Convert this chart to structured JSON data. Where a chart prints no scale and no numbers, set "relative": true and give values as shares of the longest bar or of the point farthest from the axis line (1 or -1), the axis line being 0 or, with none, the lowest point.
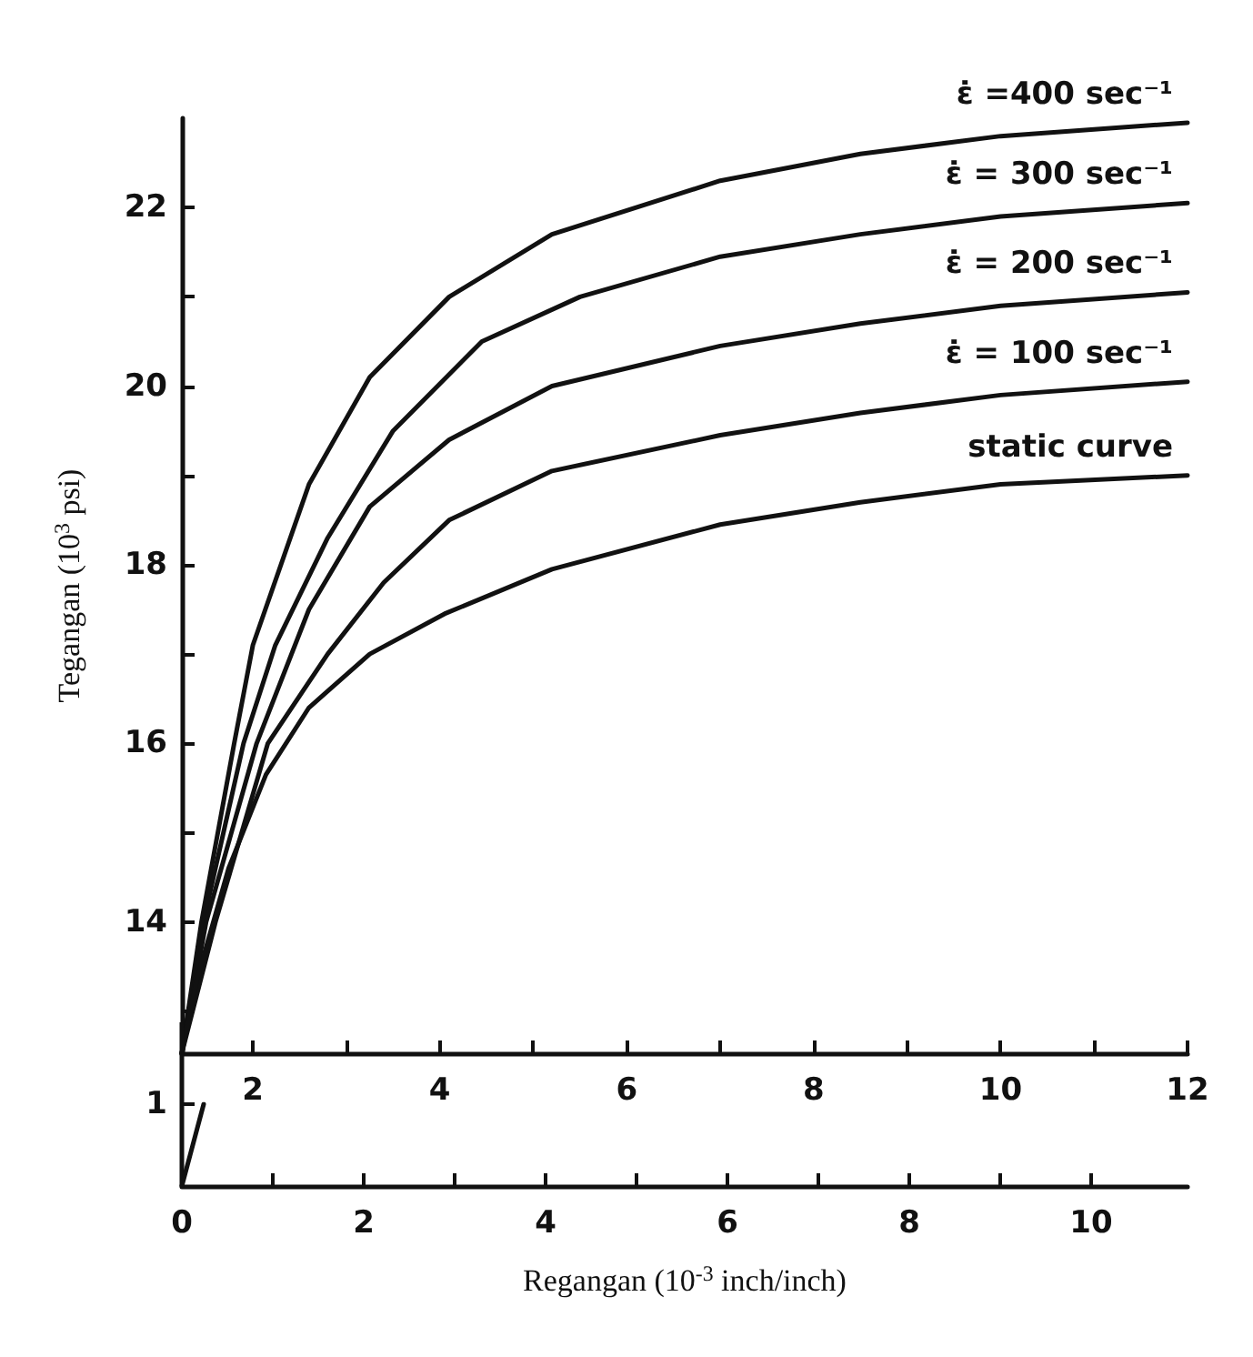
{
  "chart_data": [
    {
      "type": "line",
      "ylabel": "Tegangan (10$^{3}$ psi)",
      "marker": "none",
      "line_style": "solid",
      "xlim": [
        1.24,
        12
      ],
      "xticks": [
        2,
        {
          "value": 3,
          "label": null
        },
        4,
        {
          "value": 5,
          "label": null
        },
        6,
        {
          "value": 7,
          "label": null
        },
        8,
        {
          "value": 9,
          "label": null
        },
        10,
        {
          "value": 11,
          "label": null
        },
        12
      ],
      "ylim": [
        12.53,
        23
      ],
      "yticks": [
        {
          "value": 13,
          "label": null
        },
        14,
        {
          "value": 15,
          "label": null
        },
        16,
        {
          "value": 17,
          "label": null
        },
        18,
        {
          "value": 19,
          "label": null
        },
        20,
        {
          "value": 21,
          "label": null
        },
        22
      ],
      "series": [
        {
          "name": "ε̇ =400 sec⁻¹",
          "color": "#111111",
          "x": [
            1.24,
            1.45,
            1.8,
            2.0,
            2.6,
            3.25,
            4.1,
            5.2,
            7.0,
            8.5,
            10,
            12
          ],
          "values": [
            12.53,
            14,
            16,
            17.1,
            18.9,
            20.1,
            21.0,
            21.7,
            22.3,
            22.6,
            22.8,
            22.95
          ]
        },
        {
          "name": "ε̇ = 300 sec⁻¹",
          "color": "#111111",
          "x": [
            1.24,
            1.47,
            1.9,
            2.24,
            2.8,
            3.5,
            4.45,
            5.5,
            7.0,
            8.5,
            10,
            12
          ],
          "values": [
            12.53,
            14,
            16,
            17.1,
            18.3,
            19.5,
            20.5,
            21.0,
            21.45,
            21.7,
            21.9,
            22.05
          ]
        },
        {
          "name": "ε̇ = 200 sec⁻¹",
          "color": "#111111",
          "x": [
            1.24,
            1.5,
            2.04,
            2.6,
            3.25,
            4.1,
            5.2,
            7.0,
            8.5,
            10,
            12
          ],
          "values": [
            12.53,
            14,
            16,
            17.5,
            18.65,
            19.4,
            20.0,
            20.45,
            20.7,
            20.9,
            21.05
          ]
        },
        {
          "name": "ε̇ = 100 sec⁻¹",
          "color": "#111111",
          "x": [
            1.24,
            1.6,
            2.16,
            2.8,
            3.4,
            4.1,
            5.2,
            7.0,
            8.5,
            10,
            12
          ],
          "values": [
            12.53,
            14,
            16,
            17.0,
            17.8,
            18.5,
            19.05,
            19.45,
            19.7,
            19.9,
            20.05
          ]
        },
        {
          "name": "static curve",
          "color": "#111111",
          "x": [
            1.24,
            1.4,
            1.74,
            2.14,
            2.6,
            3.25,
            4.05,
            5.2,
            7.0,
            8.5,
            10,
            12
          ],
          "values": [
            12.53,
            13.35,
            14.6,
            15.65,
            16.4,
            17.0,
            17.45,
            17.95,
            18.45,
            18.7,
            18.9,
            19.0
          ]
        }
      ]
    },
    {
      "type": "line",
      "xlabel": "Regangan (10$^{-3}$ inch/inch)",
      "marker": "none",
      "line_style": "solid",
      "xlim": [
        0,
        11.06
      ],
      "xticks": [
        0,
        {
          "value": 1,
          "label": null
        },
        2,
        {
          "value": 3,
          "label": null
        },
        4,
        {
          "value": 5,
          "label": null
        },
        6,
        {
          "value": 7,
          "label": null
        },
        8,
        {
          "value": 9,
          "label": null
        },
        10
      ],
      "relative": true,
      "annotations": [
        "1"
      ],
      "series": [
        {
          "color": "#111111",
          "x": [
            0,
            0.24
          ],
          "values": [
            0,
            1
          ]
        }
      ]
    }
  ]
}
